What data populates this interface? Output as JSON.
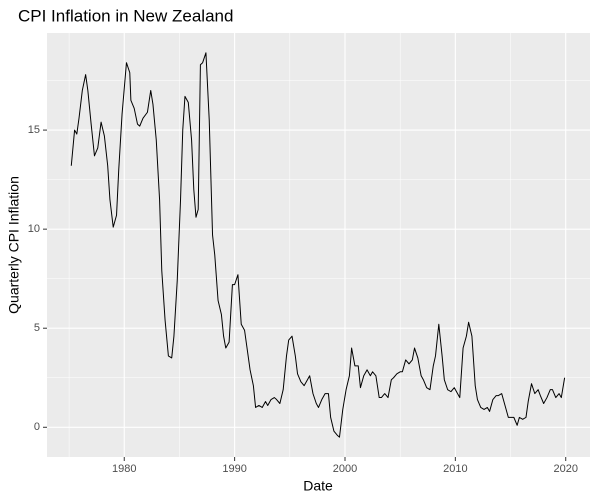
{
  "chart_data": {
    "type": "line",
    "title": "CPI Inflation in New Zealand",
    "x_label": "Date",
    "y_label": "Quarterly CPI Inflation",
    "color": "#000000",
    "grid": true,
    "xlim": [
      1973.0,
      2022.2
    ],
    "ylim": [
      -1.5,
      19.9
    ],
    "xticks": [
      1980,
      1990,
      2000,
      2010,
      2020
    ],
    "yticks": [
      0,
      5,
      10,
      15
    ],
    "x": [
      1975.2,
      1975.5,
      1975.7,
      1975.9,
      1976.2,
      1976.5,
      1976.7,
      1977.0,
      1977.3,
      1977.6,
      1977.9,
      1978.2,
      1978.5,
      1978.7,
      1979.0,
      1979.3,
      1979.5,
      1979.8,
      1980.2,
      1980.5,
      1980.6,
      1980.9,
      1981.2,
      1981.4,
      1981.7,
      1982.1,
      1982.4,
      1982.6,
      1982.9,
      1983.2,
      1983.4,
      1983.7,
      1984.0,
      1984.3,
      1984.5,
      1984.8,
      1985.1,
      1985.3,
      1985.5,
      1985.8,
      1986.1,
      1986.3,
      1986.5,
      1986.7,
      1986.9,
      1987.1,
      1987.4,
      1987.7,
      1988.0,
      1988.2,
      1988.5,
      1988.8,
      1989.0,
      1989.2,
      1989.5,
      1989.8,
      1990.0,
      1990.3,
      1990.6,
      1990.9,
      1991.1,
      1991.4,
      1991.7,
      1991.9,
      1992.2,
      1992.5,
      1992.8,
      1993.0,
      1993.3,
      1993.6,
      1993.8,
      1994.1,
      1994.4,
      1994.7,
      1994.9,
      1995.2,
      1995.5,
      1995.7,
      1996.0,
      1996.3,
      1996.6,
      1996.8,
      1997.1,
      1997.4,
      1997.6,
      1997.9,
      1998.2,
      1998.5,
      1998.7,
      1999.0,
      1999.3,
      1999.5,
      1999.8,
      2000.1,
      2000.4,
      2000.6,
      2000.9,
      2001.2,
      2001.4,
      2001.7,
      2002.0,
      2002.3,
      2002.5,
      2002.8,
      2003.1,
      2003.3,
      2003.6,
      2003.9,
      2004.2,
      2004.4,
      2004.7,
      2005.0,
      2005.2,
      2005.5,
      2005.8,
      2006.1,
      2006.3,
      2006.6,
      2006.9,
      2007.1,
      2007.4,
      2007.7,
      2008.0,
      2008.2,
      2008.5,
      2008.8,
      2009.0,
      2009.3,
      2009.6,
      2009.9,
      2010.1,
      2010.4,
      2010.7,
      2011.0,
      2011.2,
      2011.5,
      2011.8,
      2012.0,
      2012.3,
      2012.6,
      2012.9,
      2013.1,
      2013.4,
      2013.7,
      2013.9,
      2014.2,
      2014.5,
      2014.8,
      2015.0,
      2015.3,
      2015.6,
      2015.8,
      2016.1,
      2016.4,
      2016.6,
      2016.9,
      2017.2,
      2017.5,
      2017.7,
      2018.0,
      2018.3,
      2018.6,
      2018.8,
      2019.1,
      2019.4,
      2019.6,
      2019.9
    ],
    "values": [
      13.2,
      15.0,
      14.8,
      15.6,
      17.0,
      17.8,
      17.0,
      15.3,
      13.7,
      14.1,
      15.4,
      14.7,
      13.2,
      11.5,
      10.1,
      10.7,
      13.0,
      15.8,
      18.4,
      17.9,
      16.5,
      16.1,
      15.3,
      15.2,
      15.6,
      15.9,
      17.0,
      16.3,
      14.5,
      11.5,
      7.9,
      5.4,
      3.6,
      3.5,
      4.6,
      7.4,
      11.5,
      15.0,
      16.7,
      16.4,
      14.5,
      12.0,
      10.6,
      11.0,
      18.3,
      18.4,
      18.9,
      15.5,
      9.7,
      8.7,
      6.4,
      5.7,
      4.6,
      4.0,
      4.3,
      7.2,
      7.2,
      7.7,
      5.2,
      4.9,
      4.1,
      2.9,
      2.1,
      1.0,
      1.1,
      1.0,
      1.3,
      1.1,
      1.4,
      1.5,
      1.4,
      1.2,
      1.9,
      3.6,
      4.4,
      4.6,
      3.6,
      2.7,
      2.3,
      2.1,
      2.4,
      2.6,
      1.7,
      1.2,
      1.0,
      1.4,
      1.7,
      1.7,
      0.5,
      -0.2,
      -0.4,
      -0.5,
      0.9,
      1.9,
      2.6,
      4.0,
      3.1,
      3.1,
      2.0,
      2.6,
      2.9,
      2.6,
      2.8,
      2.6,
      1.5,
      1.5,
      1.7,
      1.5,
      2.4,
      2.5,
      2.7,
      2.8,
      2.8,
      3.4,
      3.2,
      3.4,
      4.0,
      3.5,
      2.6,
      2.4,
      2.0,
      1.9,
      3.1,
      3.6,
      5.2,
      3.6,
      2.4,
      1.9,
      1.8,
      2.0,
      1.8,
      1.5,
      4.0,
      4.6,
      5.3,
      4.6,
      2.1,
      1.4,
      1.0,
      0.9,
      1.0,
      0.8,
      1.4,
      1.6,
      1.6,
      1.7,
      1.1,
      0.5,
      0.5,
      0.5,
      0.1,
      0.5,
      0.4,
      0.5,
      1.3,
      2.2,
      1.7,
      1.9,
      1.6,
      1.2,
      1.5,
      1.9,
      1.9,
      1.5,
      1.7,
      1.5,
      2.5
    ]
  }
}
